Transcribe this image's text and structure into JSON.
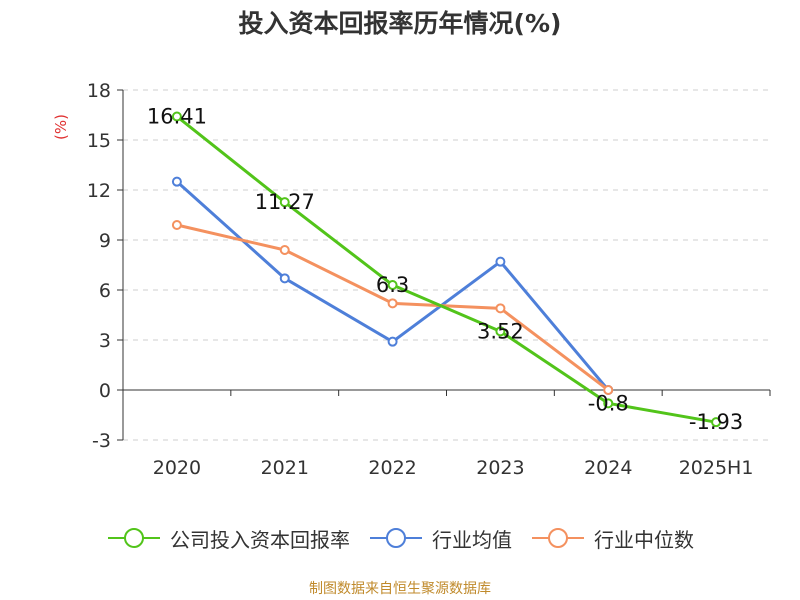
{
  "chart_data": {
    "type": "line",
    "title": "投入资本回报率历年情况(%)",
    "ylabel": "(%)",
    "categories": [
      "2020",
      "2021",
      "2022",
      "2023",
      "2024",
      "2025H1"
    ],
    "ylim": [
      -3,
      18
    ],
    "yticks": [
      -3,
      0,
      3,
      6,
      9,
      12,
      15,
      18
    ],
    "grid": true,
    "legend_position": "bottom",
    "series": [
      {
        "name": "公司投入资本回报率",
        "color": "#52c41a",
        "values": [
          16.41,
          11.27,
          6.3,
          3.52,
          -0.8,
          -1.93
        ],
        "labels": [
          "16.41",
          "11.27",
          "6.3",
          "3.52",
          "-0.8",
          "-1.93"
        ]
      },
      {
        "name": "行业均值",
        "color": "#4e7fd9",
        "values": [
          12.5,
          6.7,
          2.9,
          7.7,
          0.0,
          null
        ]
      },
      {
        "name": "行业中位数",
        "color": "#f4915f",
        "values": [
          9.9,
          8.4,
          5.2,
          4.9,
          0.0,
          null
        ]
      }
    ]
  },
  "footer": {
    "source": "制图数据来自恒生聚源数据库"
  }
}
